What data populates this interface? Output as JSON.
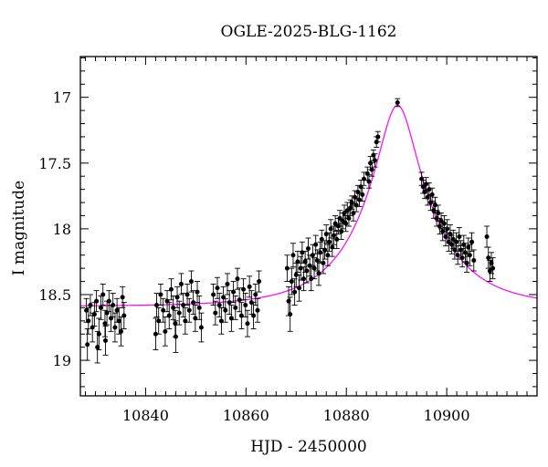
{
  "chart_data": {
    "type": "scatter",
    "title": "OGLE-2025-BLG-1162",
    "xlabel": "HJD - 2450000",
    "ylabel": "I magnitude",
    "xlim": [
      10827,
      10918
    ],
    "ylim": [
      19.27,
      16.69
    ],
    "y_inverted": true,
    "x_ticks": [
      10840,
      10860,
      10880,
      10900
    ],
    "y_ticks": [
      17,
      17.5,
      18,
      18.5,
      19
    ],
    "y_tick_labels": [
      "17",
      "17.5",
      "18",
      "18.5",
      "19"
    ],
    "series": [
      {
        "kind": "points_with_errorbars",
        "color": "#000000",
        "points": [
          [
            10828.2,
            18.62,
            0.09
          ],
          [
            10828.6,
            18.7,
            0.1
          ],
          [
            10829.0,
            18.58,
            0.08
          ],
          [
            10829.4,
            18.75,
            0.11
          ],
          [
            10829.8,
            18.65,
            0.09
          ],
          [
            10830.2,
            18.55,
            0.08
          ],
          [
            10830.7,
            18.8,
            0.12
          ],
          [
            10831.1,
            18.6,
            0.09
          ],
          [
            10831.5,
            18.5,
            0.08
          ],
          [
            10831.9,
            18.72,
            0.1
          ],
          [
            10832.3,
            18.64,
            0.09
          ],
          [
            10832.7,
            18.55,
            0.08
          ],
          [
            10833.1,
            18.68,
            0.1
          ],
          [
            10833.5,
            18.58,
            0.09
          ],
          [
            10833.9,
            18.75,
            0.11
          ],
          [
            10834.3,
            18.62,
            0.09
          ],
          [
            10834.7,
            18.7,
            0.1
          ],
          [
            10835.1,
            18.78,
            0.11
          ],
          [
            10835.4,
            18.52,
            0.08
          ],
          [
            10835.7,
            18.66,
            0.1
          ],
          [
            10828.4,
            18.88,
            0.12
          ],
          [
            10830.4,
            18.9,
            0.12
          ],
          [
            10832.0,
            18.85,
            0.11
          ],
          [
            10842.2,
            18.58,
            0.09
          ],
          [
            10842.6,
            18.7,
            0.1
          ],
          [
            10843.0,
            18.5,
            0.08
          ],
          [
            10843.5,
            18.62,
            0.09
          ],
          [
            10843.9,
            18.78,
            0.11
          ],
          [
            10844.3,
            18.55,
            0.08
          ],
          [
            10844.7,
            18.66,
            0.1
          ],
          [
            10845.1,
            18.46,
            0.08
          ],
          [
            10845.5,
            18.6,
            0.09
          ],
          [
            10845.9,
            18.72,
            0.1
          ],
          [
            10846.3,
            18.52,
            0.08
          ],
          [
            10846.7,
            18.64,
            0.09
          ],
          [
            10847.1,
            18.42,
            0.08
          ],
          [
            10847.5,
            18.58,
            0.09
          ],
          [
            10847.9,
            18.7,
            0.1
          ],
          [
            10848.3,
            18.5,
            0.08
          ],
          [
            10848.7,
            18.62,
            0.09
          ],
          [
            10849.1,
            18.4,
            0.08
          ],
          [
            10849.5,
            18.56,
            0.09
          ],
          [
            10849.9,
            18.68,
            0.1
          ],
          [
            10850.3,
            18.48,
            0.08
          ],
          [
            10850.7,
            18.6,
            0.09
          ],
          [
            10851.1,
            18.75,
            0.11
          ],
          [
            10842.0,
            18.8,
            0.12
          ],
          [
            10846.0,
            18.82,
            0.12
          ],
          [
            10853.5,
            18.5,
            0.08
          ],
          [
            10853.9,
            18.64,
            0.09
          ],
          [
            10854.3,
            18.45,
            0.08
          ],
          [
            10854.7,
            18.58,
            0.09
          ],
          [
            10855.1,
            18.7,
            0.1
          ],
          [
            10855.5,
            18.52,
            0.08
          ],
          [
            10855.9,
            18.62,
            0.09
          ],
          [
            10856.3,
            18.42,
            0.08
          ],
          [
            10856.7,
            18.56,
            0.09
          ],
          [
            10857.1,
            18.68,
            0.1
          ],
          [
            10857.5,
            18.48,
            0.08
          ],
          [
            10857.9,
            18.6,
            0.09
          ],
          [
            10858.3,
            18.38,
            0.08
          ],
          [
            10858.7,
            18.54,
            0.09
          ],
          [
            10859.1,
            18.66,
            0.1
          ],
          [
            10859.5,
            18.46,
            0.08
          ],
          [
            10859.9,
            18.58,
            0.09
          ],
          [
            10860.3,
            18.72,
            0.1
          ],
          [
            10860.7,
            18.44,
            0.08
          ],
          [
            10861.1,
            18.56,
            0.09
          ],
          [
            10861.5,
            18.66,
            0.1
          ],
          [
            10861.9,
            18.5,
            0.08
          ],
          [
            10862.3,
            18.62,
            0.09
          ],
          [
            10862.6,
            18.4,
            0.08
          ],
          [
            10868.2,
            18.3,
            0.1
          ],
          [
            10868.5,
            18.55,
            0.11
          ],
          [
            10868.8,
            18.65,
            0.13
          ],
          [
            10869.1,
            18.4,
            0.1
          ],
          [
            10869.4,
            18.2,
            0.09
          ],
          [
            10869.7,
            18.48,
            0.1
          ],
          [
            10870.0,
            18.35,
            0.09
          ],
          [
            10870.3,
            18.25,
            0.08
          ],
          [
            10870.6,
            18.45,
            0.1
          ],
          [
            10870.9,
            18.3,
            0.09
          ],
          [
            10871.2,
            18.18,
            0.08
          ],
          [
            10871.5,
            18.38,
            0.09
          ],
          [
            10871.8,
            18.25,
            0.08
          ],
          [
            10872.1,
            18.32,
            0.09
          ],
          [
            10872.4,
            18.15,
            0.08
          ],
          [
            10872.7,
            18.28,
            0.08
          ],
          [
            10873.0,
            18.38,
            0.09
          ],
          [
            10873.3,
            18.2,
            0.08
          ],
          [
            10873.6,
            18.3,
            0.08
          ],
          [
            10873.9,
            18.12,
            0.07
          ],
          [
            10874.2,
            18.24,
            0.08
          ],
          [
            10874.5,
            18.34,
            0.09
          ],
          [
            10874.8,
            18.18,
            0.08
          ],
          [
            10875.1,
            18.08,
            0.07
          ],
          [
            10875.4,
            18.26,
            0.08
          ],
          [
            10875.7,
            18.16,
            0.07
          ],
          [
            10876.0,
            18.04,
            0.07
          ],
          [
            10876.3,
            18.2,
            0.08
          ],
          [
            10876.6,
            18.1,
            0.07
          ],
          [
            10876.9,
            18.0,
            0.07
          ],
          [
            10877.2,
            18.14,
            0.07
          ],
          [
            10877.5,
            18.05,
            0.07
          ],
          [
            10877.8,
            17.96,
            0.06
          ],
          [
            10878.1,
            18.08,
            0.07
          ],
          [
            10878.4,
            17.98,
            0.06
          ],
          [
            10878.7,
            17.92,
            0.06
          ],
          [
            10879.0,
            18.02,
            0.06
          ],
          [
            10879.3,
            17.94,
            0.06
          ],
          [
            10879.6,
            17.88,
            0.06
          ],
          [
            10879.9,
            17.96,
            0.06
          ],
          [
            10880.2,
            17.86,
            0.06
          ],
          [
            10880.5,
            17.92,
            0.06
          ],
          [
            10880.8,
            17.84,
            0.06
          ],
          [
            10881.1,
            17.8,
            0.05
          ],
          [
            10881.4,
            17.88,
            0.06
          ],
          [
            10881.7,
            17.76,
            0.05
          ],
          [
            10882.0,
            17.82,
            0.05
          ],
          [
            10882.3,
            17.72,
            0.05
          ],
          [
            10882.6,
            17.78,
            0.05
          ],
          [
            10882.9,
            17.68,
            0.05
          ],
          [
            10883.2,
            17.74,
            0.05
          ],
          [
            10883.5,
            17.62,
            0.05
          ],
          [
            10884.2,
            17.58,
            0.05
          ],
          [
            10884.5,
            17.64,
            0.05
          ],
          [
            10884.8,
            17.5,
            0.05
          ],
          [
            10885.1,
            17.55,
            0.05
          ],
          [
            10885.4,
            17.44,
            0.04
          ],
          [
            10885.7,
            17.48,
            0.05
          ],
          [
            10886.0,
            17.34,
            0.04
          ],
          [
            10886.3,
            17.3,
            0.04
          ],
          [
            10890.2,
            17.04,
            0.03
          ],
          [
            10895.0,
            17.62,
            0.05
          ],
          [
            10895.3,
            17.68,
            0.05
          ],
          [
            10895.6,
            17.72,
            0.05
          ],
          [
            10895.9,
            17.66,
            0.05
          ],
          [
            10896.2,
            17.76,
            0.06
          ],
          [
            10896.5,
            17.7,
            0.05
          ],
          [
            10896.8,
            17.8,
            0.06
          ],
          [
            10897.1,
            17.74,
            0.05
          ],
          [
            10897.4,
            17.86,
            0.06
          ],
          [
            10897.7,
            17.82,
            0.06
          ],
          [
            10898.0,
            17.92,
            0.06
          ],
          [
            10898.3,
            17.88,
            0.06
          ],
          [
            10898.6,
            17.98,
            0.06
          ],
          [
            10898.9,
            17.94,
            0.06
          ],
          [
            10899.2,
            18.02,
            0.07
          ],
          [
            10899.5,
            17.96,
            0.06
          ],
          [
            10899.8,
            18.06,
            0.07
          ],
          [
            10900.1,
            18.0,
            0.07
          ],
          [
            10900.4,
            18.1,
            0.07
          ],
          [
            10900.7,
            18.04,
            0.07
          ],
          [
            10901.0,
            18.12,
            0.07
          ],
          [
            10901.3,
            18.08,
            0.07
          ],
          [
            10901.6,
            18.16,
            0.07
          ],
          [
            10901.9,
            18.1,
            0.07
          ],
          [
            10902.2,
            18.2,
            0.07
          ],
          [
            10902.5,
            18.06,
            0.07
          ],
          [
            10902.8,
            18.16,
            0.07
          ],
          [
            10903.1,
            18.22,
            0.07
          ],
          [
            10903.4,
            18.12,
            0.07
          ],
          [
            10903.7,
            18.18,
            0.07
          ],
          [
            10904.0,
            18.26,
            0.07
          ],
          [
            10904.3,
            18.14,
            0.07
          ],
          [
            10904.6,
            18.2,
            0.08
          ],
          [
            10905.0,
            18.1,
            0.07
          ],
          [
            10905.4,
            18.24,
            0.08
          ],
          [
            10908.0,
            18.06,
            0.08
          ],
          [
            10908.3,
            18.22,
            0.08
          ],
          [
            10908.6,
            18.32,
            0.08
          ],
          [
            10908.9,
            18.26,
            0.08
          ],
          [
            10909.2,
            18.3,
            0.08
          ]
        ]
      },
      {
        "kind": "model_curve",
        "color": "#ff00ff",
        "model": {
          "t0": 10890.2,
          "u0": 0.25,
          "tE": 14.0,
          "baseline_mag": 18.59
        }
      }
    ],
    "grid": false,
    "legend": "none"
  }
}
